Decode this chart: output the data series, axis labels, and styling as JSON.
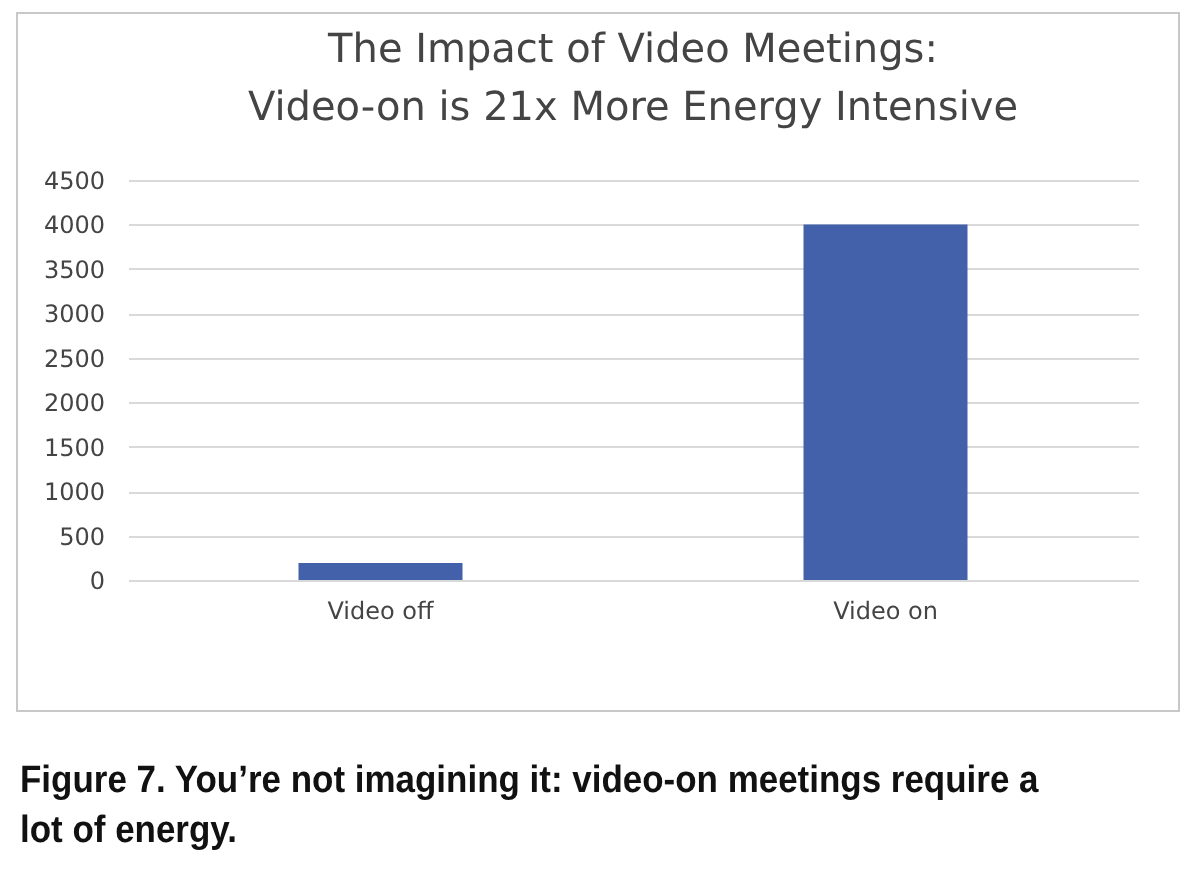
{
  "chart_data": {
    "type": "bar",
    "title": "The Impact of Video Meetings:\nVideo-on is 21x More Energy Intensive",
    "categories": [
      "Video off",
      "Video on"
    ],
    "values": [
      190,
      4000
    ],
    "color": "#4360ab",
    "ylim": [
      0,
      4500
    ],
    "yticks": [
      0,
      500,
      1000,
      1500,
      2000,
      2500,
      3000,
      3500,
      4000,
      4500
    ],
    "grid": "y",
    "annotations": [
      "Figure 7. You’re not imagining it: video-on meetings require a lot of energy."
    ]
  }
}
